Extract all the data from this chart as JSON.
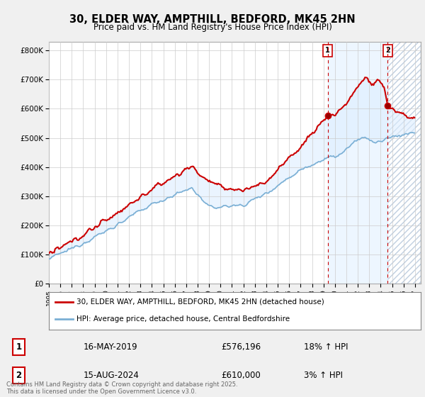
{
  "title": "30, ELDER WAY, AMPTHILL, BEDFORD, MK45 2HN",
  "subtitle": "Price paid vs. HM Land Registry's House Price Index (HPI)",
  "ylabel_ticks": [
    "£0",
    "£100K",
    "£200K",
    "£300K",
    "£400K",
    "£500K",
    "£600K",
    "£700K",
    "£800K"
  ],
  "ytick_values": [
    0,
    100000,
    200000,
    300000,
    400000,
    500000,
    600000,
    700000,
    800000
  ],
  "ylim": [
    0,
    830000
  ],
  "xlim_start": 1995.25,
  "xlim_end": 2027.5,
  "marker1_x": 2019.37,
  "marker1_y": 576196,
  "marker2_x": 2024.62,
  "marker2_y": 610000,
  "line1_color": "#cc0000",
  "line2_color": "#7aafd4",
  "shade_color": "#ddeeff",
  "grid_color": "#cccccc",
  "background_color": "#f0f0f0",
  "plot_bg_color": "#ffffff",
  "marker_box_color": "#cc0000",
  "hatch_color": "#c8d8e8",
  "footer": "Contains HM Land Registry data © Crown copyright and database right 2025.\nThis data is licensed under the Open Government Licence v3.0.",
  "legend1": "30, ELDER WAY, AMPTHILL, BEDFORD, MK45 2HN (detached house)",
  "legend2": "HPI: Average price, detached house, Central Bedfordshire",
  "marker1_date": "16-MAY-2019",
  "marker1_price": "£576,196",
  "marker1_hpi": "18% ↑ HPI",
  "marker2_date": "15-AUG-2024",
  "marker2_price": "£610,000",
  "marker2_hpi": "3% ↑ HPI"
}
